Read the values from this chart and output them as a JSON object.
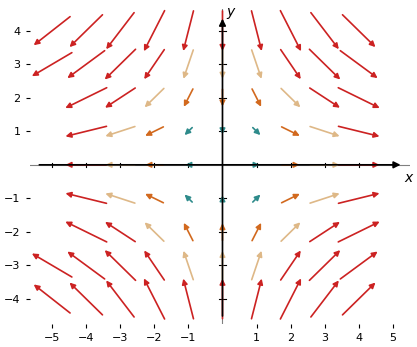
{
  "x_range": [
    -5,
    5
  ],
  "y_range": [
    -4,
    4
  ],
  "x_ticks": [
    -5,
    -4,
    -3,
    -2,
    -1,
    0,
    1,
    2,
    3,
    4,
    5
  ],
  "y_ticks": [
    -4,
    -3,
    -2,
    -1,
    0,
    1,
    2,
    3,
    4
  ],
  "xlabel": "x",
  "ylabel": "y",
  "title": "",
  "background_color": "#ffffff",
  "grid_x_points": [
    -5,
    -4,
    -3,
    -2,
    -1,
    0,
    1,
    2,
    3,
    4,
    5
  ],
  "grid_y_points": [
    -4,
    -3,
    -2,
    -1,
    0,
    1,
    2,
    3,
    4
  ],
  "color_thresholds": [
    0.5,
    1.5,
    2.5,
    3.5,
    5.0
  ],
  "colors": [
    "#1f4e79",
    "#2e8b8b",
    "#d2691e",
    "#deb887",
    "#cc2222"
  ],
  "arrow_scale": 4.5
}
